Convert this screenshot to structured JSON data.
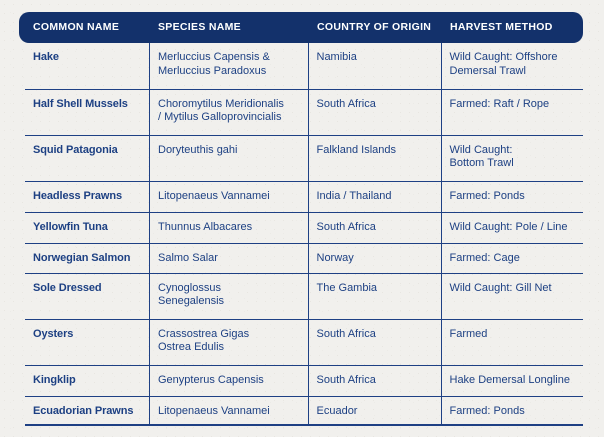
{
  "colors": {
    "header_background": "#13316b",
    "header_text": "#ffffff",
    "body_text": "#1d4083",
    "grid_lines": "#1e4084",
    "page_background": "#f1f0ed"
  },
  "table": {
    "columns": [
      "COMMON NAME",
      "SPECIES NAME",
      "COUNTRY OF ORIGIN",
      "HARVEST METHOD"
    ],
    "rows": [
      {
        "common_name": "Hake",
        "species_name": "Merluccius Capensis &\nMerluccius Paradoxus",
        "country_of_origin": "Namibia",
        "harvest_method": "Wild Caught: Offshore\nDemersal Trawl"
      },
      {
        "common_name": "Half Shell Mussels",
        "species_name": "Choromytilus Meridionalis\n/ Mytilus Galloprovincialis",
        "country_of_origin": "South Africa",
        "harvest_method": "Farmed: Raft / Rope"
      },
      {
        "common_name": "Squid Patagonia",
        "species_name": "Doryteuthis gahi",
        "country_of_origin": "Falkland Islands",
        "harvest_method": "Wild Caught:\nBottom Trawl"
      },
      {
        "common_name": "Headless Prawns",
        "species_name": "Litopenaeus Vannamei",
        "country_of_origin": "India / Thailand",
        "harvest_method": "Farmed: Ponds"
      },
      {
        "common_name": "Yellowfin Tuna",
        "species_name": "Thunnus Albacares",
        "country_of_origin": "South Africa",
        "harvest_method": "Wild Caught: Pole / Line"
      },
      {
        "common_name": "Norwegian Salmon",
        "species_name": "Salmo Salar",
        "country_of_origin": "Norway",
        "harvest_method": "Farmed: Cage"
      },
      {
        "common_name": "Sole Dressed",
        "species_name": "Cynoglossus\nSenegalensis",
        "country_of_origin": "The Gambia",
        "harvest_method": "Wild Caught: Gill Net"
      },
      {
        "common_name": "Oysters",
        "species_name": "Crassostrea Gigas\nOstrea Edulis",
        "country_of_origin": "South Africa",
        "harvest_method": "Farmed"
      },
      {
        "common_name": "Kingklip",
        "species_name": "Genypterus Capensis",
        "country_of_origin": "South Africa",
        "harvest_method": "Hake Demersal Longline"
      },
      {
        "common_name": "Ecuadorian Prawns",
        "species_name": "Litopenaeus Vannamei",
        "country_of_origin": "Ecuador",
        "harvest_method": "Farmed: Ponds"
      }
    ]
  }
}
